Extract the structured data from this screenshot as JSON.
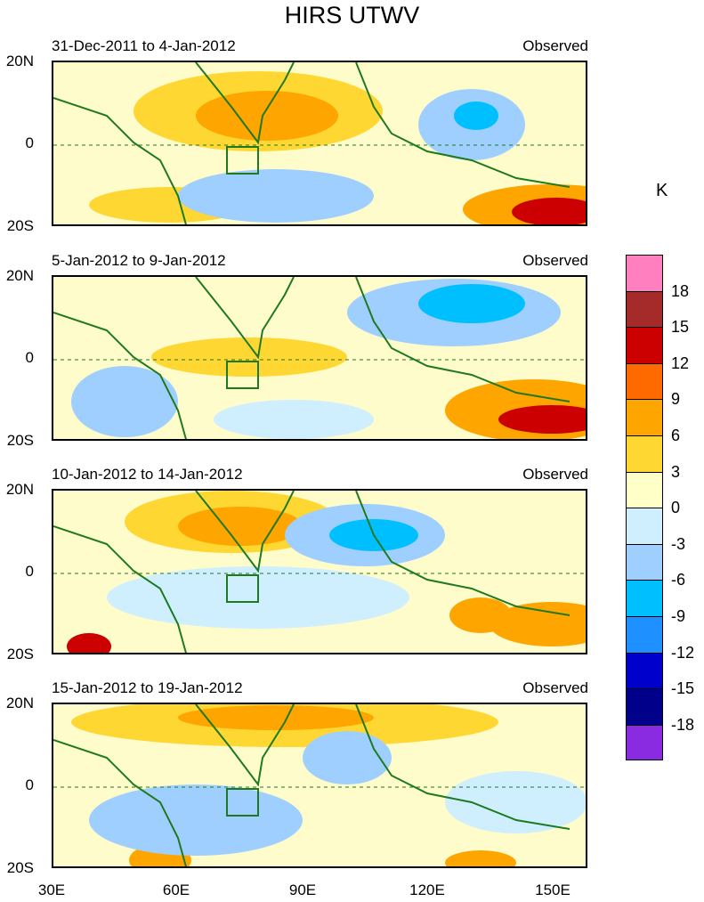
{
  "title": "HIRS UTWV",
  "units_label": "K",
  "panels": [
    {
      "period": "31-Dec-2011 to 4-Jan-2012",
      "status": "Observed"
    },
    {
      "period": "5-Jan-2012 to 9-Jan-2012",
      "status": "Observed"
    },
    {
      "period": "10-Jan-2012 to 14-Jan-2012",
      "status": "Observed"
    },
    {
      "period": "15-Jan-2012 to 19-Jan-2012",
      "status": "Observed"
    }
  ],
  "lat_labels": [
    "20N",
    "0",
    "20S"
  ],
  "lon_labels": [
    "30E",
    "60E",
    "90E",
    "120E",
    "150E"
  ],
  "colorbar": {
    "colors": [
      "#ff7fbf",
      "#a52a2a",
      "#cc0000",
      "#ff6a00",
      "#ffa500",
      "#ffd733",
      "#ffffc8",
      "#cfefff",
      "#9fcfff",
      "#00bfff",
      "#1e90ff",
      "#0000cd",
      "#00008b",
      "#8a2be2"
    ],
    "labels": [
      "18",
      "15",
      "12",
      "9",
      "6",
      "3",
      "0",
      "-3",
      "-6",
      "-9",
      "-12",
      "-15",
      "-18"
    ]
  },
  "palette": {
    "land_outline": "#1f7a1f",
    "hot1": "#ffd733",
    "hot2": "#ffa500",
    "hot3": "#ff6a00",
    "hot4": "#cc0000",
    "hot5": "#a52a2a",
    "neutral": "#fffccc",
    "cool1": "#cfefff",
    "cool2": "#9fcfff",
    "cool3": "#00bfff"
  }
}
